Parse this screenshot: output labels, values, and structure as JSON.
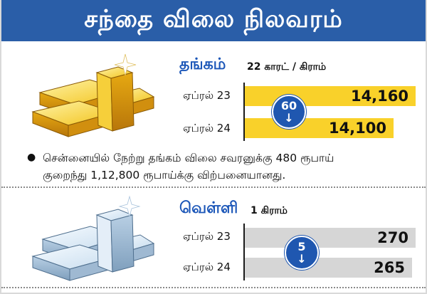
{
  "header": {
    "title": "சந்தை விலை நிலவரம்"
  },
  "gold": {
    "title": "தங்கம்",
    "unit": "22 காரட் / கிராம்",
    "rows": [
      {
        "date": "ஏப்ரல் 23",
        "price": "14,160"
      },
      {
        "date": "ஏப்ரல் 24",
        "price": "14,100"
      }
    ],
    "change": {
      "value": "60",
      "direction_icon": "arrow-down-icon"
    },
    "bar_fill_fraction": [
      1.0,
      0.87
    ],
    "bar_color": "#f9d12a"
  },
  "note": {
    "text_line1": "சென்னையில் நேற்று தங்கம் விலை சவரனுக்கு 480 ரூபாய்",
    "text_line2": "குறைந்து 1,12,800 ரூபாய்க்கு விற்பனையானது."
  },
  "silver": {
    "title": "வெள்ளி",
    "unit": "1 கிராம்",
    "rows": [
      {
        "date": "ஏப்ரல் 23",
        "price": "270"
      },
      {
        "date": "ஏப்ரல் 24",
        "price": "265"
      }
    ],
    "change": {
      "value": "5",
      "direction_icon": "arrow-down-icon"
    },
    "bar_fill_fraction": [
      1.0,
      0.98
    ],
    "bar_color": "#d6d6d6"
  },
  "colors": {
    "header_bg": "#2a5ea8",
    "title_blue": "#1b56b8",
    "badge_blue": "#1f57b0"
  }
}
